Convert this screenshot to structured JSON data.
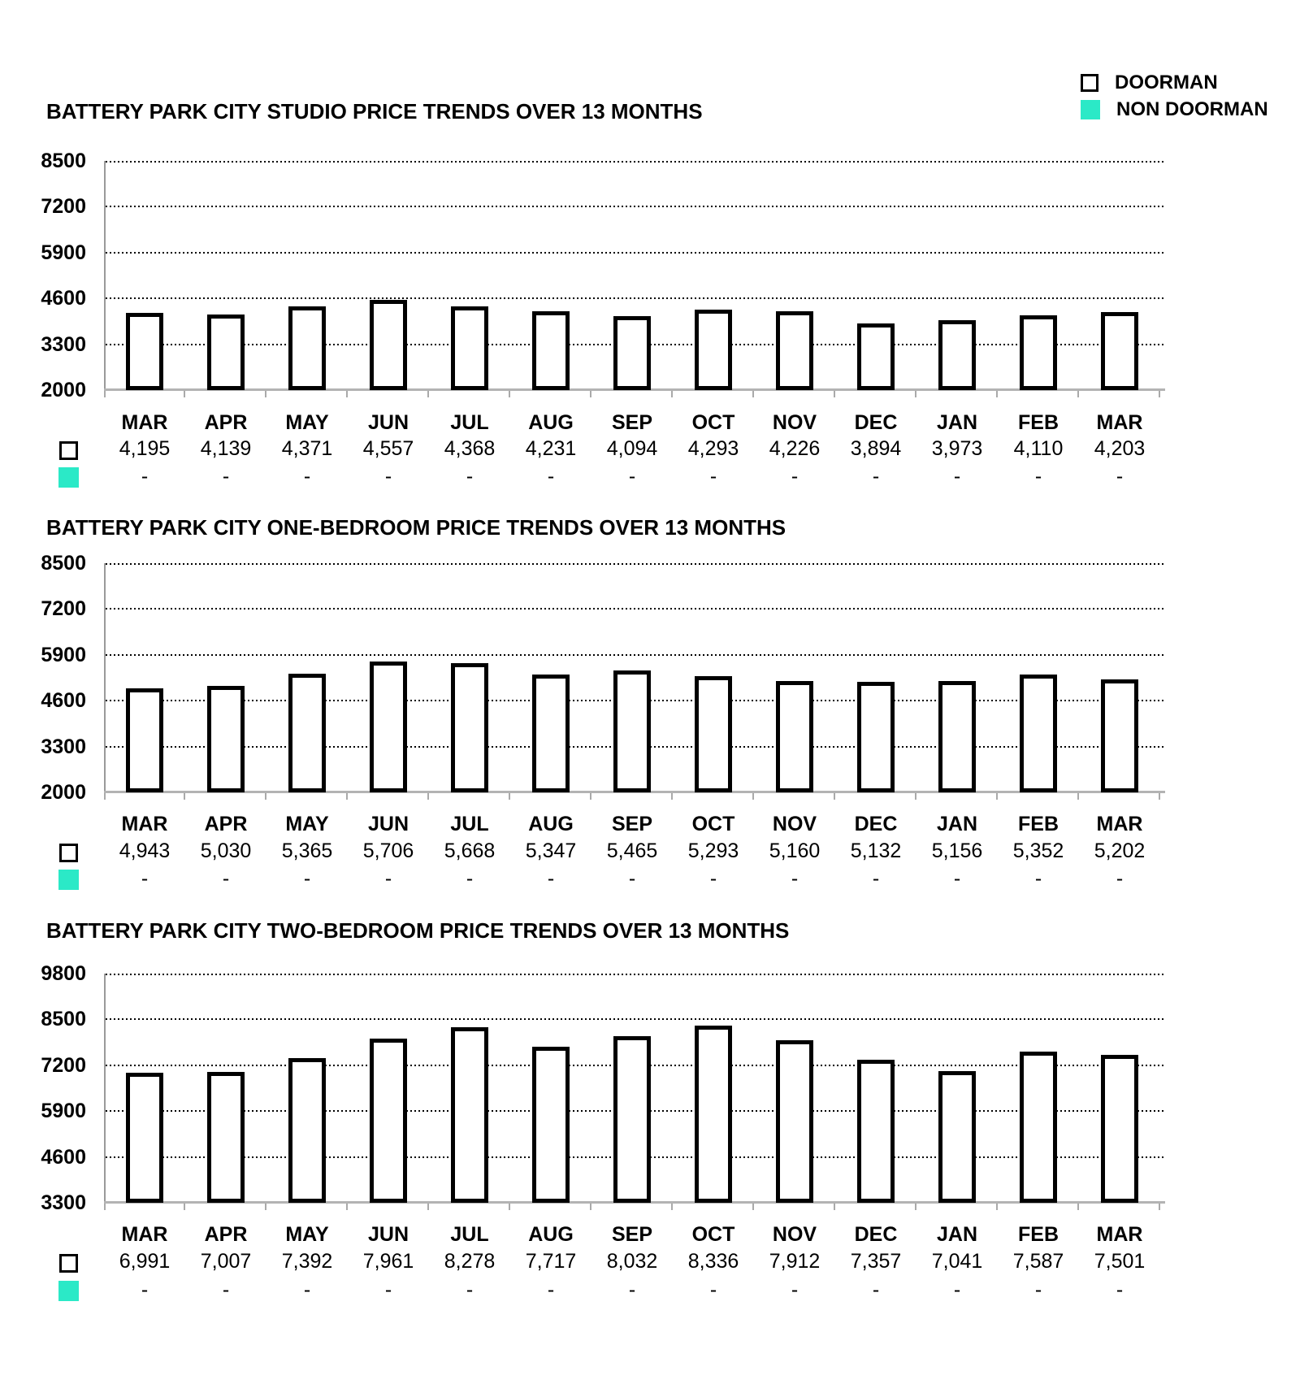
{
  "legend": {
    "items": [
      {
        "label": "DOORMAN",
        "swatch": "white-outlined-square"
      },
      {
        "label": "NON DOORMAN",
        "swatch": "turquoise-filled-square"
      }
    ]
  },
  "colors": {
    "non_doorman_swatch": "#2BE9C7",
    "bar_fill": "#FFFFFF",
    "bar_border": "#000000",
    "baseline": "#B3B3B3",
    "axis_line": "#9A9A9A",
    "text": "#000000"
  },
  "chart_data": [
    {
      "type": "bar",
      "title": "BATTERY PARK CITY STUDIO PRICE TRENDS OVER 13 MONTHS",
      "categories": [
        "MAR",
        "APR",
        "MAY",
        "JUN",
        "JUL",
        "AUG",
        "SEP",
        "OCT",
        "NOV",
        "DEC",
        "JAN",
        "FEB",
        "MAR"
      ],
      "series": [
        {
          "name": "DOORMAN",
          "values": [
            4195,
            4139,
            4371,
            4557,
            4368,
            4231,
            4094,
            4293,
            4226,
            3894,
            3973,
            4110,
            4203
          ]
        },
        {
          "name": "NON DOORMAN",
          "values": [
            null,
            null,
            null,
            null,
            null,
            null,
            null,
            null,
            null,
            null,
            null,
            null,
            null
          ]
        }
      ],
      "value_labels": [
        "4,195",
        "4,139",
        "4,371",
        "4,557",
        "4,368",
        "4,231",
        "4,094",
        "4,293",
        "4,226",
        "3,894",
        "3,973",
        "4,110",
        "4,203"
      ],
      "non_doorman_labels": [
        "-",
        "-",
        "-",
        "-",
        "-",
        "-",
        "-",
        "-",
        "-",
        "-",
        "-",
        "-",
        "-"
      ],
      "y_ticks": [
        2000,
        3300,
        4600,
        5900,
        7200,
        8500
      ],
      "ylim": [
        2000,
        8500
      ],
      "grid": "horizontal-dotted",
      "legend_position": "top-right"
    },
    {
      "type": "bar",
      "title": "BATTERY PARK CITY ONE-BEDROOM PRICE TRENDS OVER 13 MONTHS",
      "categories": [
        "MAR",
        "APR",
        "MAY",
        "JUN",
        "JUL",
        "AUG",
        "SEP",
        "OCT",
        "NOV",
        "DEC",
        "JAN",
        "FEB",
        "MAR"
      ],
      "series": [
        {
          "name": "DOORMAN",
          "values": [
            4943,
            5030,
            5365,
            5706,
            5668,
            5347,
            5465,
            5293,
            5160,
            5132,
            5156,
            5352,
            5202
          ]
        },
        {
          "name": "NON DOORMAN",
          "values": [
            null,
            null,
            null,
            null,
            null,
            null,
            null,
            null,
            null,
            null,
            null,
            null,
            null
          ]
        }
      ],
      "value_labels": [
        "4,943",
        "5,030",
        "5,365",
        "5,706",
        "5,668",
        "5,347",
        "5,465",
        "5,293",
        "5,160",
        "5,132",
        "5,156",
        "5,352",
        "5,202"
      ],
      "non_doorman_labels": [
        "-",
        "-",
        "-",
        "-",
        "-",
        "-",
        "-",
        "-",
        "-",
        "-",
        "-",
        "-",
        "-"
      ],
      "y_ticks": [
        2000,
        3300,
        4600,
        5900,
        7200,
        8500
      ],
      "ylim": [
        2000,
        8500
      ],
      "grid": "horizontal-dotted",
      "legend_position": "top-right"
    },
    {
      "type": "bar",
      "title": "BATTERY PARK CITY TWO-BEDROOM PRICE TRENDS OVER 13 MONTHS",
      "categories": [
        "MAR",
        "APR",
        "MAY",
        "JUN",
        "JUL",
        "AUG",
        "SEP",
        "OCT",
        "NOV",
        "DEC",
        "JAN",
        "FEB",
        "MAR"
      ],
      "series": [
        {
          "name": "DOORMAN",
          "values": [
            6991,
            7007,
            7392,
            7961,
            8278,
            7717,
            8032,
            8336,
            7912,
            7357,
            7041,
            7587,
            7501
          ]
        },
        {
          "name": "NON DOORMAN",
          "values": [
            null,
            null,
            null,
            null,
            null,
            null,
            null,
            null,
            null,
            null,
            null,
            null,
            null
          ]
        }
      ],
      "value_labels": [
        "6,991",
        "7,007",
        "7,392",
        "7,961",
        "8,278",
        "7,717",
        "8,032",
        "8,336",
        "7,912",
        "7,357",
        "7,041",
        "7,587",
        "7,501"
      ],
      "non_doorman_labels": [
        "-",
        "-",
        "-",
        "-",
        "-",
        "-",
        "-",
        "-",
        "-",
        "-",
        "-",
        "-",
        "-"
      ],
      "y_ticks": [
        3300,
        4600,
        5900,
        7200,
        8500,
        9800
      ],
      "ylim": [
        3300,
        9800
      ],
      "grid": "horizontal-dotted",
      "legend_position": "top-right"
    }
  ]
}
